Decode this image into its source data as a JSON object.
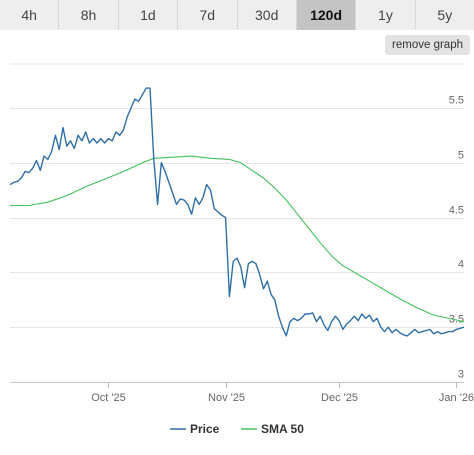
{
  "tabs": [
    {
      "label": "4h",
      "active": false
    },
    {
      "label": "8h",
      "active": false
    },
    {
      "label": "1d",
      "active": false
    },
    {
      "label": "7d",
      "active": false
    },
    {
      "label": "30d",
      "active": false
    },
    {
      "label": "120d",
      "active": true
    },
    {
      "label": "1y",
      "active": false
    },
    {
      "label": "5y",
      "active": false
    }
  ],
  "remove_graph_label": "remove graph",
  "chart_data": {
    "type": "line",
    "x_range": [
      "2025-09-05",
      "2026-01-03"
    ],
    "ylim": [
      3.0,
      5.9
    ],
    "y_ticks": [
      {
        "value": 5.5,
        "label": "5.5"
      },
      {
        "value": 5,
        "label": "5"
      },
      {
        "value": 4.5,
        "label": "4.5"
      },
      {
        "value": 4,
        "label": "4"
      },
      {
        "value": 3.5,
        "label": "3.5"
      },
      {
        "value": 3,
        "label": "3"
      }
    ],
    "x_ticks": [
      {
        "date": "2025-10-01",
        "label": "Oct '25"
      },
      {
        "date": "2025-11-01",
        "label": "Nov '25"
      },
      {
        "date": "2025-12-01",
        "label": "Dec '25"
      },
      {
        "date": "2026-01-01",
        "label": "Jan '26"
      }
    ],
    "grid": "horizontal",
    "legend_position": "bottom",
    "series": [
      {
        "name": "Price",
        "color": "#2f6fa8",
        "points": [
          [
            "2025-09-05",
            4.8
          ],
          [
            "2025-09-06",
            4.82
          ],
          [
            "2025-09-07",
            4.83
          ],
          [
            "2025-09-08",
            4.86
          ],
          [
            "2025-09-09",
            4.92
          ],
          [
            "2025-09-10",
            4.91
          ],
          [
            "2025-09-11",
            4.95
          ],
          [
            "2025-09-12",
            5.02
          ],
          [
            "2025-09-13",
            4.93
          ],
          [
            "2025-09-14",
            5.06
          ],
          [
            "2025-09-15",
            5.03
          ],
          [
            "2025-09-16",
            5.1
          ],
          [
            "2025-09-17",
            5.25
          ],
          [
            "2025-09-18",
            5.12
          ],
          [
            "2025-09-19",
            5.32
          ],
          [
            "2025-09-20",
            5.15
          ],
          [
            "2025-09-21",
            5.2
          ],
          [
            "2025-09-22",
            5.13
          ],
          [
            "2025-09-23",
            5.25
          ],
          [
            "2025-09-24",
            5.2
          ],
          [
            "2025-09-25",
            5.28
          ],
          [
            "2025-09-26",
            5.18
          ],
          [
            "2025-09-27",
            5.22
          ],
          [
            "2025-09-28",
            5.18
          ],
          [
            "2025-09-29",
            5.22
          ],
          [
            "2025-09-30",
            5.18
          ],
          [
            "2025-10-01",
            5.22
          ],
          [
            "2025-10-02",
            5.2
          ],
          [
            "2025-10-03",
            5.28
          ],
          [
            "2025-10-04",
            5.25
          ],
          [
            "2025-10-05",
            5.3
          ],
          [
            "2025-10-06",
            5.42
          ],
          [
            "2025-10-07",
            5.5
          ],
          [
            "2025-10-08",
            5.58
          ],
          [
            "2025-10-09",
            5.56
          ],
          [
            "2025-10-10",
            5.62
          ],
          [
            "2025-10-11",
            5.68
          ],
          [
            "2025-10-12",
            5.68
          ],
          [
            "2025-10-13",
            5.03
          ],
          [
            "2025-10-14",
            4.62
          ],
          [
            "2025-10-15",
            5.0
          ],
          [
            "2025-10-16",
            4.92
          ],
          [
            "2025-10-17",
            4.82
          ],
          [
            "2025-10-18",
            4.72
          ],
          [
            "2025-10-19",
            4.62
          ],
          [
            "2025-10-20",
            4.67
          ],
          [
            "2025-10-21",
            4.66
          ],
          [
            "2025-10-22",
            4.62
          ],
          [
            "2025-10-23",
            4.53
          ],
          [
            "2025-10-24",
            4.68
          ],
          [
            "2025-10-25",
            4.62
          ],
          [
            "2025-10-26",
            4.68
          ],
          [
            "2025-10-27",
            4.8
          ],
          [
            "2025-10-28",
            4.75
          ],
          [
            "2025-10-29",
            4.58
          ],
          [
            "2025-10-30",
            4.55
          ],
          [
            "2025-10-31",
            4.52
          ],
          [
            "2025-11-01",
            4.5
          ],
          [
            "2025-11-02",
            3.78
          ],
          [
            "2025-11-03",
            4.1
          ],
          [
            "2025-11-04",
            4.13
          ],
          [
            "2025-11-05",
            4.05
          ],
          [
            "2025-11-06",
            3.86
          ],
          [
            "2025-11-07",
            4.08
          ],
          [
            "2025-11-08",
            4.1
          ],
          [
            "2025-11-09",
            4.08
          ],
          [
            "2025-11-10",
            3.98
          ],
          [
            "2025-11-11",
            3.85
          ],
          [
            "2025-11-12",
            3.92
          ],
          [
            "2025-11-13",
            3.8
          ],
          [
            "2025-11-14",
            3.75
          ],
          [
            "2025-11-15",
            3.6
          ],
          [
            "2025-11-16",
            3.5
          ],
          [
            "2025-11-17",
            3.42
          ],
          [
            "2025-11-18",
            3.55
          ],
          [
            "2025-11-19",
            3.58
          ],
          [
            "2025-11-20",
            3.56
          ],
          [
            "2025-11-21",
            3.58
          ],
          [
            "2025-11-22",
            3.62
          ],
          [
            "2025-11-23",
            3.62
          ],
          [
            "2025-11-24",
            3.63
          ],
          [
            "2025-11-25",
            3.55
          ],
          [
            "2025-11-26",
            3.6
          ],
          [
            "2025-11-27",
            3.52
          ],
          [
            "2025-11-28",
            3.47
          ],
          [
            "2025-11-29",
            3.55
          ],
          [
            "2025-11-30",
            3.6
          ],
          [
            "2025-12-01",
            3.56
          ],
          [
            "2025-12-02",
            3.48
          ],
          [
            "2025-12-03",
            3.53
          ],
          [
            "2025-12-04",
            3.56
          ],
          [
            "2025-12-05",
            3.6
          ],
          [
            "2025-12-06",
            3.56
          ],
          [
            "2025-12-07",
            3.62
          ],
          [
            "2025-12-08",
            3.58
          ],
          [
            "2025-12-09",
            3.61
          ],
          [
            "2025-12-10",
            3.55
          ],
          [
            "2025-12-11",
            3.58
          ],
          [
            "2025-12-12",
            3.5
          ],
          [
            "2025-12-13",
            3.46
          ],
          [
            "2025-12-14",
            3.5
          ],
          [
            "2025-12-15",
            3.45
          ],
          [
            "2025-12-16",
            3.48
          ],
          [
            "2025-12-17",
            3.45
          ],
          [
            "2025-12-18",
            3.43
          ],
          [
            "2025-12-19",
            3.42
          ],
          [
            "2025-12-20",
            3.45
          ],
          [
            "2025-12-21",
            3.48
          ],
          [
            "2025-12-22",
            3.45
          ],
          [
            "2025-12-23",
            3.46
          ],
          [
            "2025-12-24",
            3.47
          ],
          [
            "2025-12-25",
            3.48
          ],
          [
            "2025-12-26",
            3.44
          ],
          [
            "2025-12-27",
            3.46
          ],
          [
            "2025-12-28",
            3.44
          ],
          [
            "2025-12-29",
            3.45
          ],
          [
            "2025-12-30",
            3.46
          ],
          [
            "2025-12-31",
            3.46
          ],
          [
            "2026-01-01",
            3.48
          ],
          [
            "2026-01-02",
            3.49
          ],
          [
            "2026-01-03",
            3.5
          ]
        ]
      },
      {
        "name": "SMA 50",
        "color": "#44c25d",
        "points": [
          [
            "2025-09-05",
            4.61
          ],
          [
            "2025-09-10",
            4.61
          ],
          [
            "2025-09-15",
            4.64
          ],
          [
            "2025-09-20",
            4.7
          ],
          [
            "2025-09-25",
            4.78
          ],
          [
            "2025-09-30",
            4.85
          ],
          [
            "2025-10-05",
            4.92
          ],
          [
            "2025-10-10",
            5.0
          ],
          [
            "2025-10-13",
            5.04
          ],
          [
            "2025-10-18",
            5.05
          ],
          [
            "2025-10-23",
            5.06
          ],
          [
            "2025-10-28",
            5.04
          ],
          [
            "2025-11-02",
            5.03
          ],
          [
            "2025-11-05",
            5.0
          ],
          [
            "2025-11-08",
            4.93
          ],
          [
            "2025-11-11",
            4.86
          ],
          [
            "2025-11-14",
            4.77
          ],
          [
            "2025-11-17",
            4.66
          ],
          [
            "2025-11-20",
            4.53
          ],
          [
            "2025-11-23",
            4.4
          ],
          [
            "2025-11-26",
            4.27
          ],
          [
            "2025-11-29",
            4.15
          ],
          [
            "2025-12-02",
            4.06
          ],
          [
            "2025-12-06",
            3.98
          ],
          [
            "2025-12-10",
            3.9
          ],
          [
            "2025-12-14",
            3.82
          ],
          [
            "2025-12-18",
            3.74
          ],
          [
            "2025-12-22",
            3.67
          ],
          [
            "2025-12-26",
            3.61
          ],
          [
            "2025-12-30",
            3.58
          ],
          [
            "2026-01-03",
            3.55
          ]
        ]
      }
    ]
  }
}
